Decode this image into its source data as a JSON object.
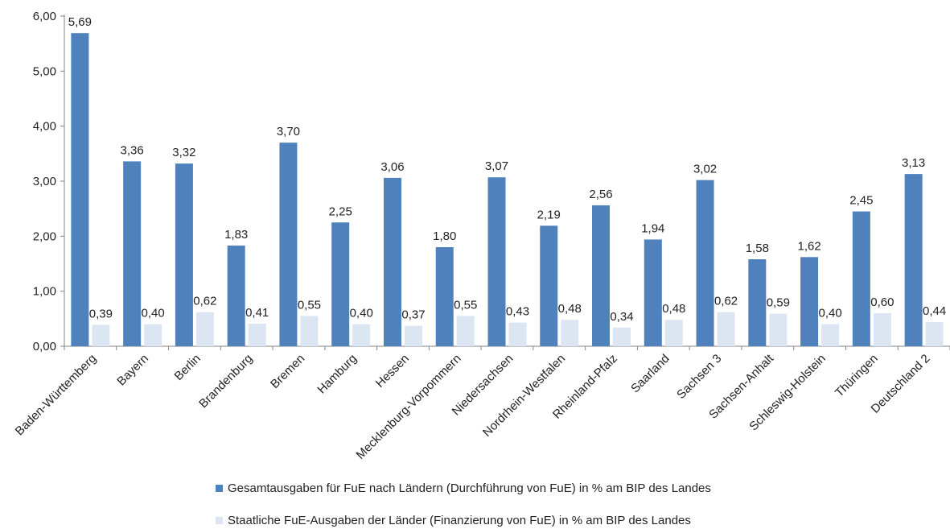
{
  "chart_data": {
    "type": "bar",
    "categories": [
      "Baden-Württemberg",
      "Bayern",
      "Berlin",
      "Brandenburg",
      "Bremen",
      "Hamburg",
      "Hessen",
      "Mecklenburg-Vorpommern",
      "Niedersachsen",
      "Nordrhein-Westfalen",
      "Rheinland-Pfalz",
      "Saarland",
      "Sachsen 3",
      "Sachsen-Anhalt",
      "Schleswig-Holstein",
      "Thüringen",
      "Deutschland 2"
    ],
    "series": [
      {
        "name": "Gesamtausgaben für FuE nach Ländern (Durchführung von FuE) in % am BIP des Landes",
        "color": "#4f81bd",
        "values": [
          5.69,
          3.36,
          3.32,
          1.83,
          3.7,
          2.25,
          3.06,
          1.8,
          3.07,
          2.19,
          2.56,
          1.94,
          3.02,
          1.58,
          1.62,
          2.45,
          3.13
        ],
        "labels": [
          "5,69",
          "3,36",
          "3,32",
          "1,83",
          "3,70",
          "2,25",
          "3,06",
          "1,80",
          "3,07",
          "2,19",
          "2,56",
          "1,94",
          "3,02",
          "1,58",
          "1,62",
          "2,45",
          "3,13"
        ]
      },
      {
        "name": "Staatliche FuE-Ausgaben der Länder (Finanzierung von FuE) in % am BIP des Landes",
        "color": "#dce6f2",
        "values": [
          0.39,
          0.4,
          0.62,
          0.41,
          0.55,
          0.4,
          0.37,
          0.55,
          0.43,
          0.48,
          0.34,
          0.48,
          0.62,
          0.59,
          0.4,
          0.6,
          0.44
        ],
        "labels": [
          "0,39",
          "0,40",
          "0,62",
          "0,41",
          "0,55",
          "0,40",
          "0,37",
          "0,55",
          "0,43",
          "0,48",
          "0,34",
          "0,48",
          "0,62",
          "0,59",
          "0,40",
          "0,60",
          "0,44"
        ]
      }
    ],
    "ylim": [
      0,
      6
    ],
    "yticks": [
      "0,00",
      "1,00",
      "2,00",
      "3,00",
      "4,00",
      "5,00",
      "6,00"
    ],
    "grid": false,
    "legend_position": "bottom"
  }
}
